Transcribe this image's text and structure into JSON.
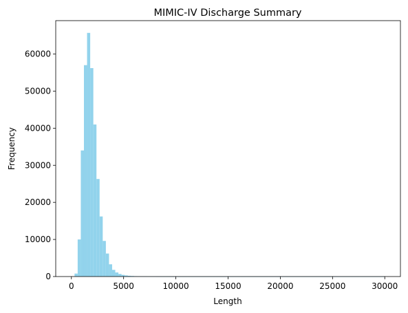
{
  "chart_data": {
    "type": "bar",
    "title": "MIMIC-IV Discharge Summary",
    "xlabel": "Length",
    "ylabel": "Frequency",
    "xlim": [
      -1500,
      31500
    ],
    "ylim": [
      0,
      69000
    ],
    "xticks": [
      0,
      5000,
      10000,
      15000,
      20000,
      25000,
      30000
    ],
    "yticks": [
      0,
      10000,
      20000,
      30000,
      40000,
      50000,
      60000
    ],
    "bin_width": 300,
    "bin_start": 0,
    "color": "#92d3ec",
    "grid": false,
    "counts": [
      0,
      800,
      10000,
      34000,
      57000,
      65700,
      56200,
      41000,
      26300,
      16200,
      9600,
      6200,
      3300,
      1800,
      1100,
      700,
      450,
      300,
      200,
      150,
      100,
      80,
      60,
      40,
      30,
      20,
      15,
      10,
      8,
      6,
      5,
      4,
      3,
      3,
      2,
      2,
      2,
      1,
      1,
      1,
      1,
      1,
      1,
      1,
      1,
      1,
      1,
      1,
      1,
      1,
      1,
      1,
      1,
      1,
      1,
      1,
      1,
      1,
      1,
      1,
      1,
      1,
      1,
      1,
      1,
      1,
      1,
      1,
      1,
      1,
      1,
      1,
      1,
      1,
      1,
      1,
      1,
      1,
      1,
      1,
      1,
      1,
      1,
      1,
      1,
      1,
      1,
      1,
      1,
      1,
      1,
      1,
      1,
      1,
      1,
      1,
      1,
      1,
      1,
      1
    ]
  }
}
